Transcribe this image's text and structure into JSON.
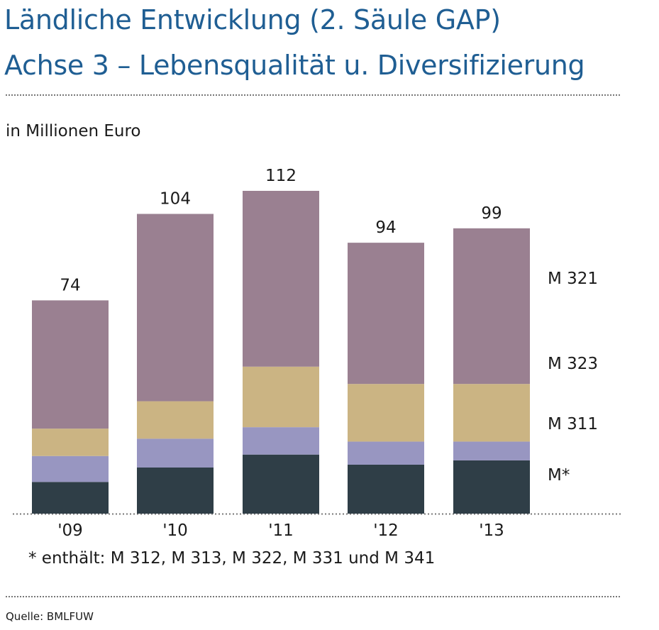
{
  "header": {
    "title_line1": "Ländliche Entwicklung (2. Säule GAP)",
    "title_line2": "Achse 3 – Lebensqualität u. Diversifizierung"
  },
  "unit_label": "in Millionen Euro",
  "footnote": "* enthält: M 312, M 313, M 322, M 331 und M 341",
  "source": "Quelle: BMLFUW",
  "chart_data": {
    "type": "bar",
    "stacked": true,
    "categories": [
      "'09",
      "'10",
      "'11",
      "'12",
      "'13"
    ],
    "totals": [
      "74",
      "104",
      "112",
      "94",
      "99"
    ],
    "series": [
      {
        "name": "M*",
        "color": "#2f3e47",
        "values": [
          11,
          16,
          20.5,
          17,
          18.5
        ]
      },
      {
        "name": "M 311",
        "color": "#9896c1",
        "values": [
          9,
          10,
          9.5,
          8,
          6.5
        ]
      },
      {
        "name": "M 323",
        "color": "#cbb483",
        "values": [
          9.5,
          13,
          21,
          20,
          20
        ]
      },
      {
        "name": "M 321",
        "color": "#9a8091",
        "values": [
          44.5,
          65,
          61,
          49,
          54
        ]
      }
    ],
    "legend_position": "right",
    "ylim": [
      0,
      112
    ],
    "grid": false
  }
}
